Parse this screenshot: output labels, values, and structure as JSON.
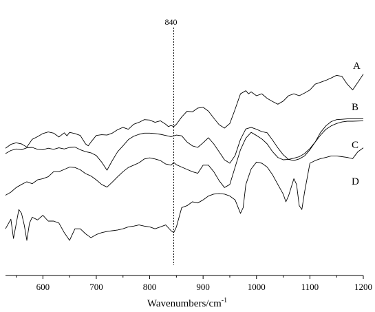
{
  "chart_data": {
    "type": "line",
    "title": "",
    "xlabel": "Wavenumbers/cm",
    "xlabel_superscript": "-1",
    "ylabel": "",
    "xlim": [
      530,
      1200
    ],
    "xticks": [
      600,
      700,
      800,
      900,
      1000,
      1100,
      1200
    ],
    "grid": false,
    "reference_line": {
      "x": 845,
      "label": "840",
      "style": "dotted"
    },
    "series": [
      {
        "name": "A",
        "points": [
          [
            530,
            -3.6
          ],
          [
            540,
            -2.6
          ],
          [
            550,
            -2.2
          ],
          [
            560,
            -2.5
          ],
          [
            570,
            -3.3
          ],
          [
            580,
            -1.3
          ],
          [
            590,
            -0.6
          ],
          [
            600,
            0.2
          ],
          [
            610,
            0.6
          ],
          [
            620,
            0.3
          ],
          [
            630,
            -0.7
          ],
          [
            640,
            0.4
          ],
          [
            645,
            -0.4
          ],
          [
            650,
            0.5
          ],
          [
            660,
            0.2
          ],
          [
            670,
            -0.3
          ],
          [
            680,
            -2.5
          ],
          [
            685,
            -3.0
          ],
          [
            690,
            -2.0
          ],
          [
            700,
            -0.3
          ],
          [
            710,
            -0.1
          ],
          [
            720,
            -0.2
          ],
          [
            730,
            0.3
          ],
          [
            740,
            1.2
          ],
          [
            750,
            1.8
          ],
          [
            760,
            1.3
          ],
          [
            770,
            2.6
          ],
          [
            780,
            3.1
          ],
          [
            790,
            3.8
          ],
          [
            800,
            3.7
          ],
          [
            810,
            3.1
          ],
          [
            820,
            3.5
          ],
          [
            830,
            2.6
          ],
          [
            835,
            2.0
          ],
          [
            840,
            2.3
          ],
          [
            845,
            2.0
          ],
          [
            850,
            2.6
          ],
          [
            860,
            4.5
          ],
          [
            870,
            6.0
          ],
          [
            880,
            5.8
          ],
          [
            890,
            6.8
          ],
          [
            900,
            7.0
          ],
          [
            910,
            6.0
          ],
          [
            920,
            4.2
          ],
          [
            930,
            2.5
          ],
          [
            940,
            1.6
          ],
          [
            950,
            2.8
          ],
          [
            960,
            6.5
          ],
          [
            970,
            10.5
          ],
          [
            980,
            11.3
          ],
          [
            985,
            10.5
          ],
          [
            990,
            11.0
          ],
          [
            1000,
            10.0
          ],
          [
            1010,
            10.5
          ],
          [
            1020,
            9.3
          ],
          [
            1030,
            8.5
          ],
          [
            1040,
            7.8
          ],
          [
            1050,
            8.6
          ],
          [
            1060,
            10.0
          ],
          [
            1070,
            10.5
          ],
          [
            1080,
            10.0
          ],
          [
            1090,
            10.7
          ],
          [
            1100,
            11.5
          ],
          [
            1110,
            13.0
          ],
          [
            1120,
            13.5
          ],
          [
            1130,
            14.0
          ],
          [
            1140,
            14.6
          ],
          [
            1150,
            15.3
          ],
          [
            1160,
            15.0
          ],
          [
            1170,
            13.0
          ],
          [
            1180,
            11.5
          ],
          [
            1190,
            13.5
          ],
          [
            1200,
            15.6
          ]
        ]
      },
      {
        "name": "B",
        "points": [
          [
            530,
            -5.0
          ],
          [
            540,
            -4.2
          ],
          [
            550,
            -3.8
          ],
          [
            560,
            -4.0
          ],
          [
            570,
            -3.5
          ],
          [
            580,
            -3.4
          ],
          [
            590,
            -3.9
          ],
          [
            600,
            -4.0
          ],
          [
            610,
            -3.6
          ],
          [
            620,
            -3.9
          ],
          [
            630,
            -3.5
          ],
          [
            640,
            -3.8
          ],
          [
            650,
            -3.4
          ],
          [
            660,
            -3.3
          ],
          [
            670,
            -4.0
          ],
          [
            680,
            -4.5
          ],
          [
            690,
            -4.8
          ],
          [
            700,
            -5.5
          ],
          [
            710,
            -7.2
          ],
          [
            720,
            -9.3
          ],
          [
            730,
            -6.8
          ],
          [
            740,
            -4.5
          ],
          [
            750,
            -3.0
          ],
          [
            760,
            -1.4
          ],
          [
            770,
            -0.5
          ],
          [
            780,
            0.0
          ],
          [
            790,
            0.3
          ],
          [
            800,
            0.3
          ],
          [
            810,
            0.2
          ],
          [
            820,
            0.0
          ],
          [
            830,
            -0.3
          ],
          [
            840,
            -0.6
          ],
          [
            850,
            -0.2
          ],
          [
            860,
            -0.4
          ],
          [
            870,
            -2.0
          ],
          [
            880,
            -3.0
          ],
          [
            890,
            -3.4
          ],
          [
            900,
            -2.2
          ],
          [
            910,
            -0.9
          ],
          [
            920,
            -2.5
          ],
          [
            930,
            -4.5
          ],
          [
            940,
            -6.6
          ],
          [
            950,
            -7.5
          ],
          [
            960,
            -5.5
          ],
          [
            970,
            -1.3
          ],
          [
            980,
            1.4
          ],
          [
            990,
            1.8
          ],
          [
            1000,
            1.3
          ],
          [
            1010,
            0.7
          ],
          [
            1020,
            0.4
          ],
          [
            1030,
            -1.5
          ],
          [
            1040,
            -3.5
          ],
          [
            1050,
            -5.3
          ],
          [
            1060,
            -6.5
          ],
          [
            1070,
            -6.8
          ],
          [
            1080,
            -6.4
          ],
          [
            1090,
            -5.6
          ],
          [
            1100,
            -4.0
          ],
          [
            1110,
            -2.0
          ],
          [
            1120,
            0.5
          ],
          [
            1130,
            2.2
          ],
          [
            1140,
            3.3
          ],
          [
            1150,
            3.8
          ],
          [
            1160,
            3.9
          ],
          [
            1170,
            4.0
          ],
          [
            1180,
            4.0
          ],
          [
            1200,
            4.0
          ]
        ]
      },
      {
        "name": "C",
        "points": [
          [
            530,
            -15.8
          ],
          [
            540,
            -15.0
          ],
          [
            550,
            -13.8
          ],
          [
            560,
            -13.0
          ],
          [
            570,
            -12.3
          ],
          [
            580,
            -12.8
          ],
          [
            590,
            -11.8
          ],
          [
            600,
            -11.5
          ],
          [
            610,
            -11.0
          ],
          [
            620,
            -9.7
          ],
          [
            630,
            -9.7
          ],
          [
            640,
            -9.1
          ],
          [
            650,
            -8.5
          ],
          [
            660,
            -8.6
          ],
          [
            670,
            -9.2
          ],
          [
            680,
            -10.2
          ],
          [
            690,
            -10.8
          ],
          [
            700,
            -11.8
          ],
          [
            710,
            -13.0
          ],
          [
            720,
            -13.7
          ],
          [
            730,
            -12.4
          ],
          [
            740,
            -11.0
          ],
          [
            750,
            -9.7
          ],
          [
            760,
            -8.6
          ],
          [
            770,
            -8.0
          ],
          [
            780,
            -7.4
          ],
          [
            790,
            -6.4
          ],
          [
            800,
            -6.1
          ],
          [
            810,
            -6.4
          ],
          [
            820,
            -6.8
          ],
          [
            830,
            -7.7
          ],
          [
            840,
            -8.0
          ],
          [
            845,
            -7.3
          ],
          [
            850,
            -7.9
          ],
          [
            860,
            -8.5
          ],
          [
            870,
            -9.1
          ],
          [
            880,
            -9.7
          ],
          [
            890,
            -10.1
          ],
          [
            900,
            -8.0
          ],
          [
            910,
            -8.0
          ],
          [
            920,
            -9.7
          ],
          [
            930,
            -12.0
          ],
          [
            940,
            -13.8
          ],
          [
            950,
            -13.0
          ],
          [
            960,
            -8.5
          ],
          [
            970,
            -4.0
          ],
          [
            980,
            -1.0
          ],
          [
            990,
            0.5
          ],
          [
            1000,
            -0.3
          ],
          [
            1010,
            -1.2
          ],
          [
            1020,
            -2.5
          ],
          [
            1030,
            -4.5
          ],
          [
            1040,
            -6.0
          ],
          [
            1050,
            -6.6
          ],
          [
            1060,
            -6.5
          ],
          [
            1070,
            -6.2
          ],
          [
            1080,
            -5.8
          ],
          [
            1090,
            -5.0
          ],
          [
            1100,
            -3.7
          ],
          [
            1110,
            -2.0
          ],
          [
            1120,
            -0.2
          ],
          [
            1130,
            1.3
          ],
          [
            1140,
            2.2
          ],
          [
            1150,
            2.8
          ],
          [
            1160,
            3.2
          ],
          [
            1170,
            3.4
          ],
          [
            1180,
            3.4
          ],
          [
            1200,
            3.5
          ]
        ]
      },
      {
        "name": "D",
        "points": [
          [
            530,
            -24.5
          ],
          [
            540,
            -22.0
          ],
          [
            545,
            -27.0
          ],
          [
            555,
            -19.5
          ],
          [
            560,
            -20.5
          ],
          [
            565,
            -23.5
          ],
          [
            570,
            -27.5
          ],
          [
            575,
            -23.0
          ],
          [
            580,
            -21.5
          ],
          [
            590,
            -22.2
          ],
          [
            600,
            -21.0
          ],
          [
            610,
            -22.5
          ],
          [
            620,
            -22.5
          ],
          [
            630,
            -23.0
          ],
          [
            640,
            -25.5
          ],
          [
            650,
            -27.5
          ],
          [
            660,
            -24.5
          ],
          [
            670,
            -24.5
          ],
          [
            680,
            -25.8
          ],
          [
            690,
            -26.8
          ],
          [
            700,
            -26.0
          ],
          [
            710,
            -25.5
          ],
          [
            720,
            -25.2
          ],
          [
            730,
            -25.0
          ],
          [
            740,
            -24.8
          ],
          [
            750,
            -24.5
          ],
          [
            760,
            -24.0
          ],
          [
            770,
            -23.8
          ],
          [
            780,
            -23.5
          ],
          [
            790,
            -23.8
          ],
          [
            800,
            -24.0
          ],
          [
            810,
            -24.5
          ],
          [
            820,
            -24.0
          ],
          [
            830,
            -23.5
          ],
          [
            840,
            -25.0
          ],
          [
            845,
            -25.5
          ],
          [
            850,
            -24.0
          ],
          [
            860,
            -19.0
          ],
          [
            870,
            -18.5
          ],
          [
            880,
            -17.5
          ],
          [
            890,
            -17.8
          ],
          [
            900,
            -17.0
          ],
          [
            910,
            -16.0
          ],
          [
            920,
            -15.5
          ],
          [
            930,
            -15.4
          ],
          [
            940,
            -15.5
          ],
          [
            950,
            -16.0
          ],
          [
            960,
            -17.0
          ],
          [
            970,
            -20.5
          ],
          [
            975,
            -19.0
          ],
          [
            980,
            -13.0
          ],
          [
            990,
            -9.0
          ],
          [
            1000,
            -7.2
          ],
          [
            1010,
            -7.5
          ],
          [
            1020,
            -8.5
          ],
          [
            1030,
            -10.5
          ],
          [
            1040,
            -13.0
          ],
          [
            1050,
            -15.5
          ],
          [
            1055,
            -17.5
          ],
          [
            1060,
            -16.0
          ],
          [
            1070,
            -11.5
          ],
          [
            1075,
            -13.0
          ],
          [
            1080,
            -18.5
          ],
          [
            1085,
            -19.5
          ],
          [
            1090,
            -15.0
          ],
          [
            1100,
            -7.5
          ],
          [
            1110,
            -6.8
          ],
          [
            1120,
            -6.3
          ],
          [
            1130,
            -6.0
          ],
          [
            1140,
            -5.6
          ],
          [
            1150,
            -5.6
          ],
          [
            1160,
            -5.8
          ],
          [
            1170,
            -6.0
          ],
          [
            1180,
            -6.3
          ],
          [
            1190,
            -4.5
          ],
          [
            1200,
            -3.5
          ]
        ]
      }
    ]
  }
}
